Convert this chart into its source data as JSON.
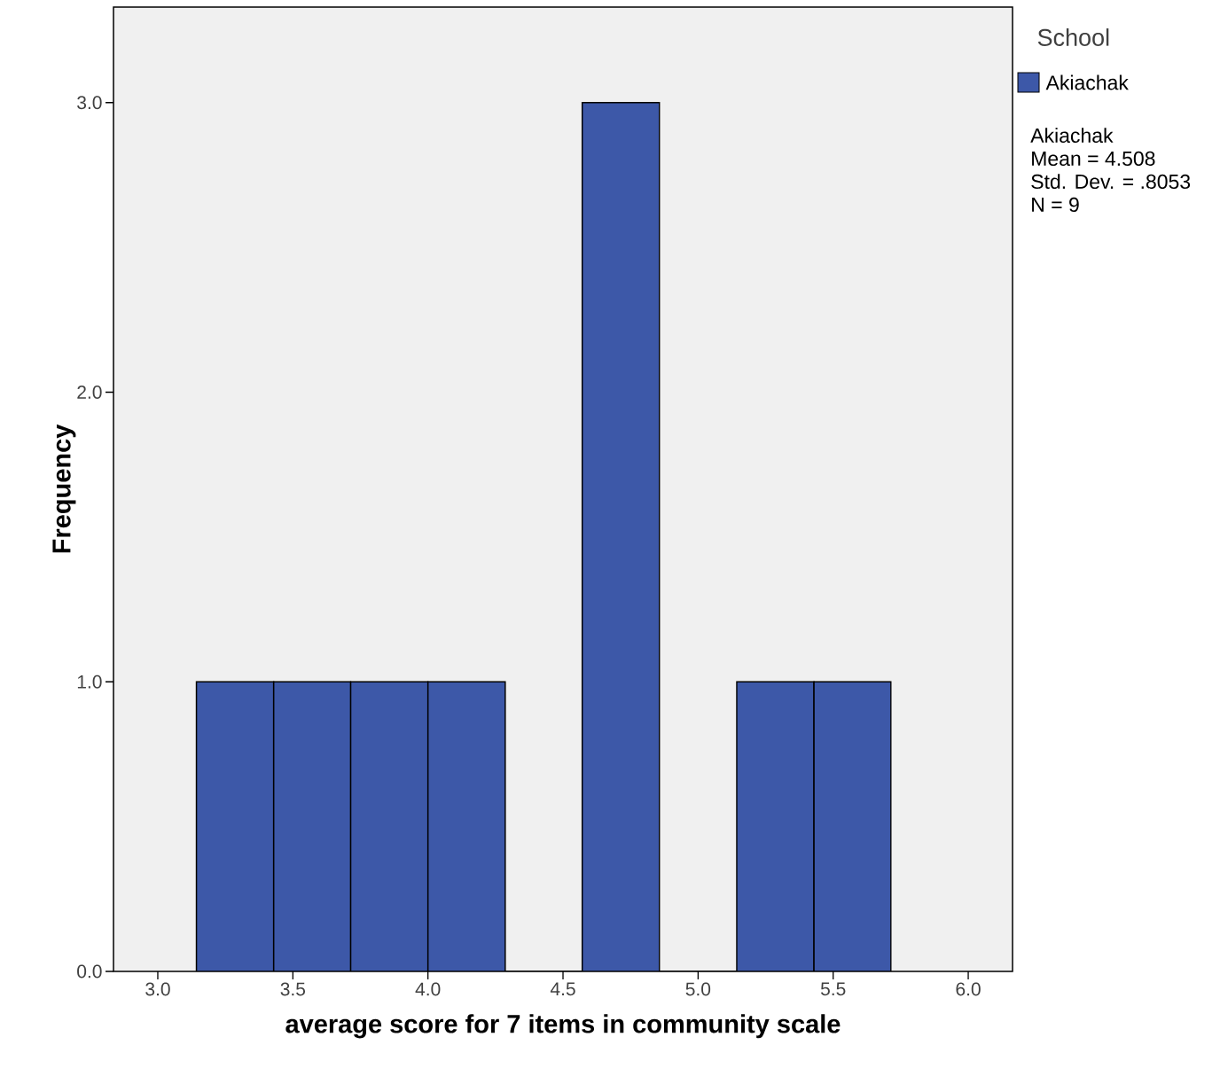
{
  "chart_data": {
    "type": "histogram",
    "xlabel": "average score for 7 items in community scale",
    "ylabel": "Frequency",
    "legend_title": "School",
    "bins": [
      3.143,
      3.429,
      3.714,
      4.0,
      4.286,
      4.571,
      4.857,
      5.143,
      5.429,
      5.714
    ],
    "series": [
      {
        "name": "Akiachak",
        "color": "#3d58a8",
        "values": [
          1,
          1,
          1,
          1,
          0,
          3,
          0,
          1,
          1
        ]
      }
    ],
    "xlim": [
      2.836,
      6.164
    ],
    "ylim": [
      0,
      3.33
    ],
    "xticks": [
      {
        "value": 3,
        "label": "3.0"
      },
      {
        "value": 3.5,
        "label": "3.5"
      },
      {
        "value": 4,
        "label": "4.0"
      },
      {
        "value": 4.5,
        "label": "4.5"
      },
      {
        "value": 5,
        "label": "5.0"
      },
      {
        "value": 5.5,
        "label": "5.5"
      },
      {
        "value": 6,
        "label": "6.0"
      }
    ],
    "yticks": [
      {
        "value": 0,
        "label": "0.0"
      },
      {
        "value": 1,
        "label": "1.0"
      },
      {
        "value": 2,
        "label": "2.0"
      },
      {
        "value": 3,
        "label": "3.0"
      }
    ],
    "annotations": [
      "Akiachak",
      "Mean = 4.508",
      "Std. Dev. = .8053",
      "N = 9"
    ],
    "legend": "top right",
    "grid": false
  }
}
